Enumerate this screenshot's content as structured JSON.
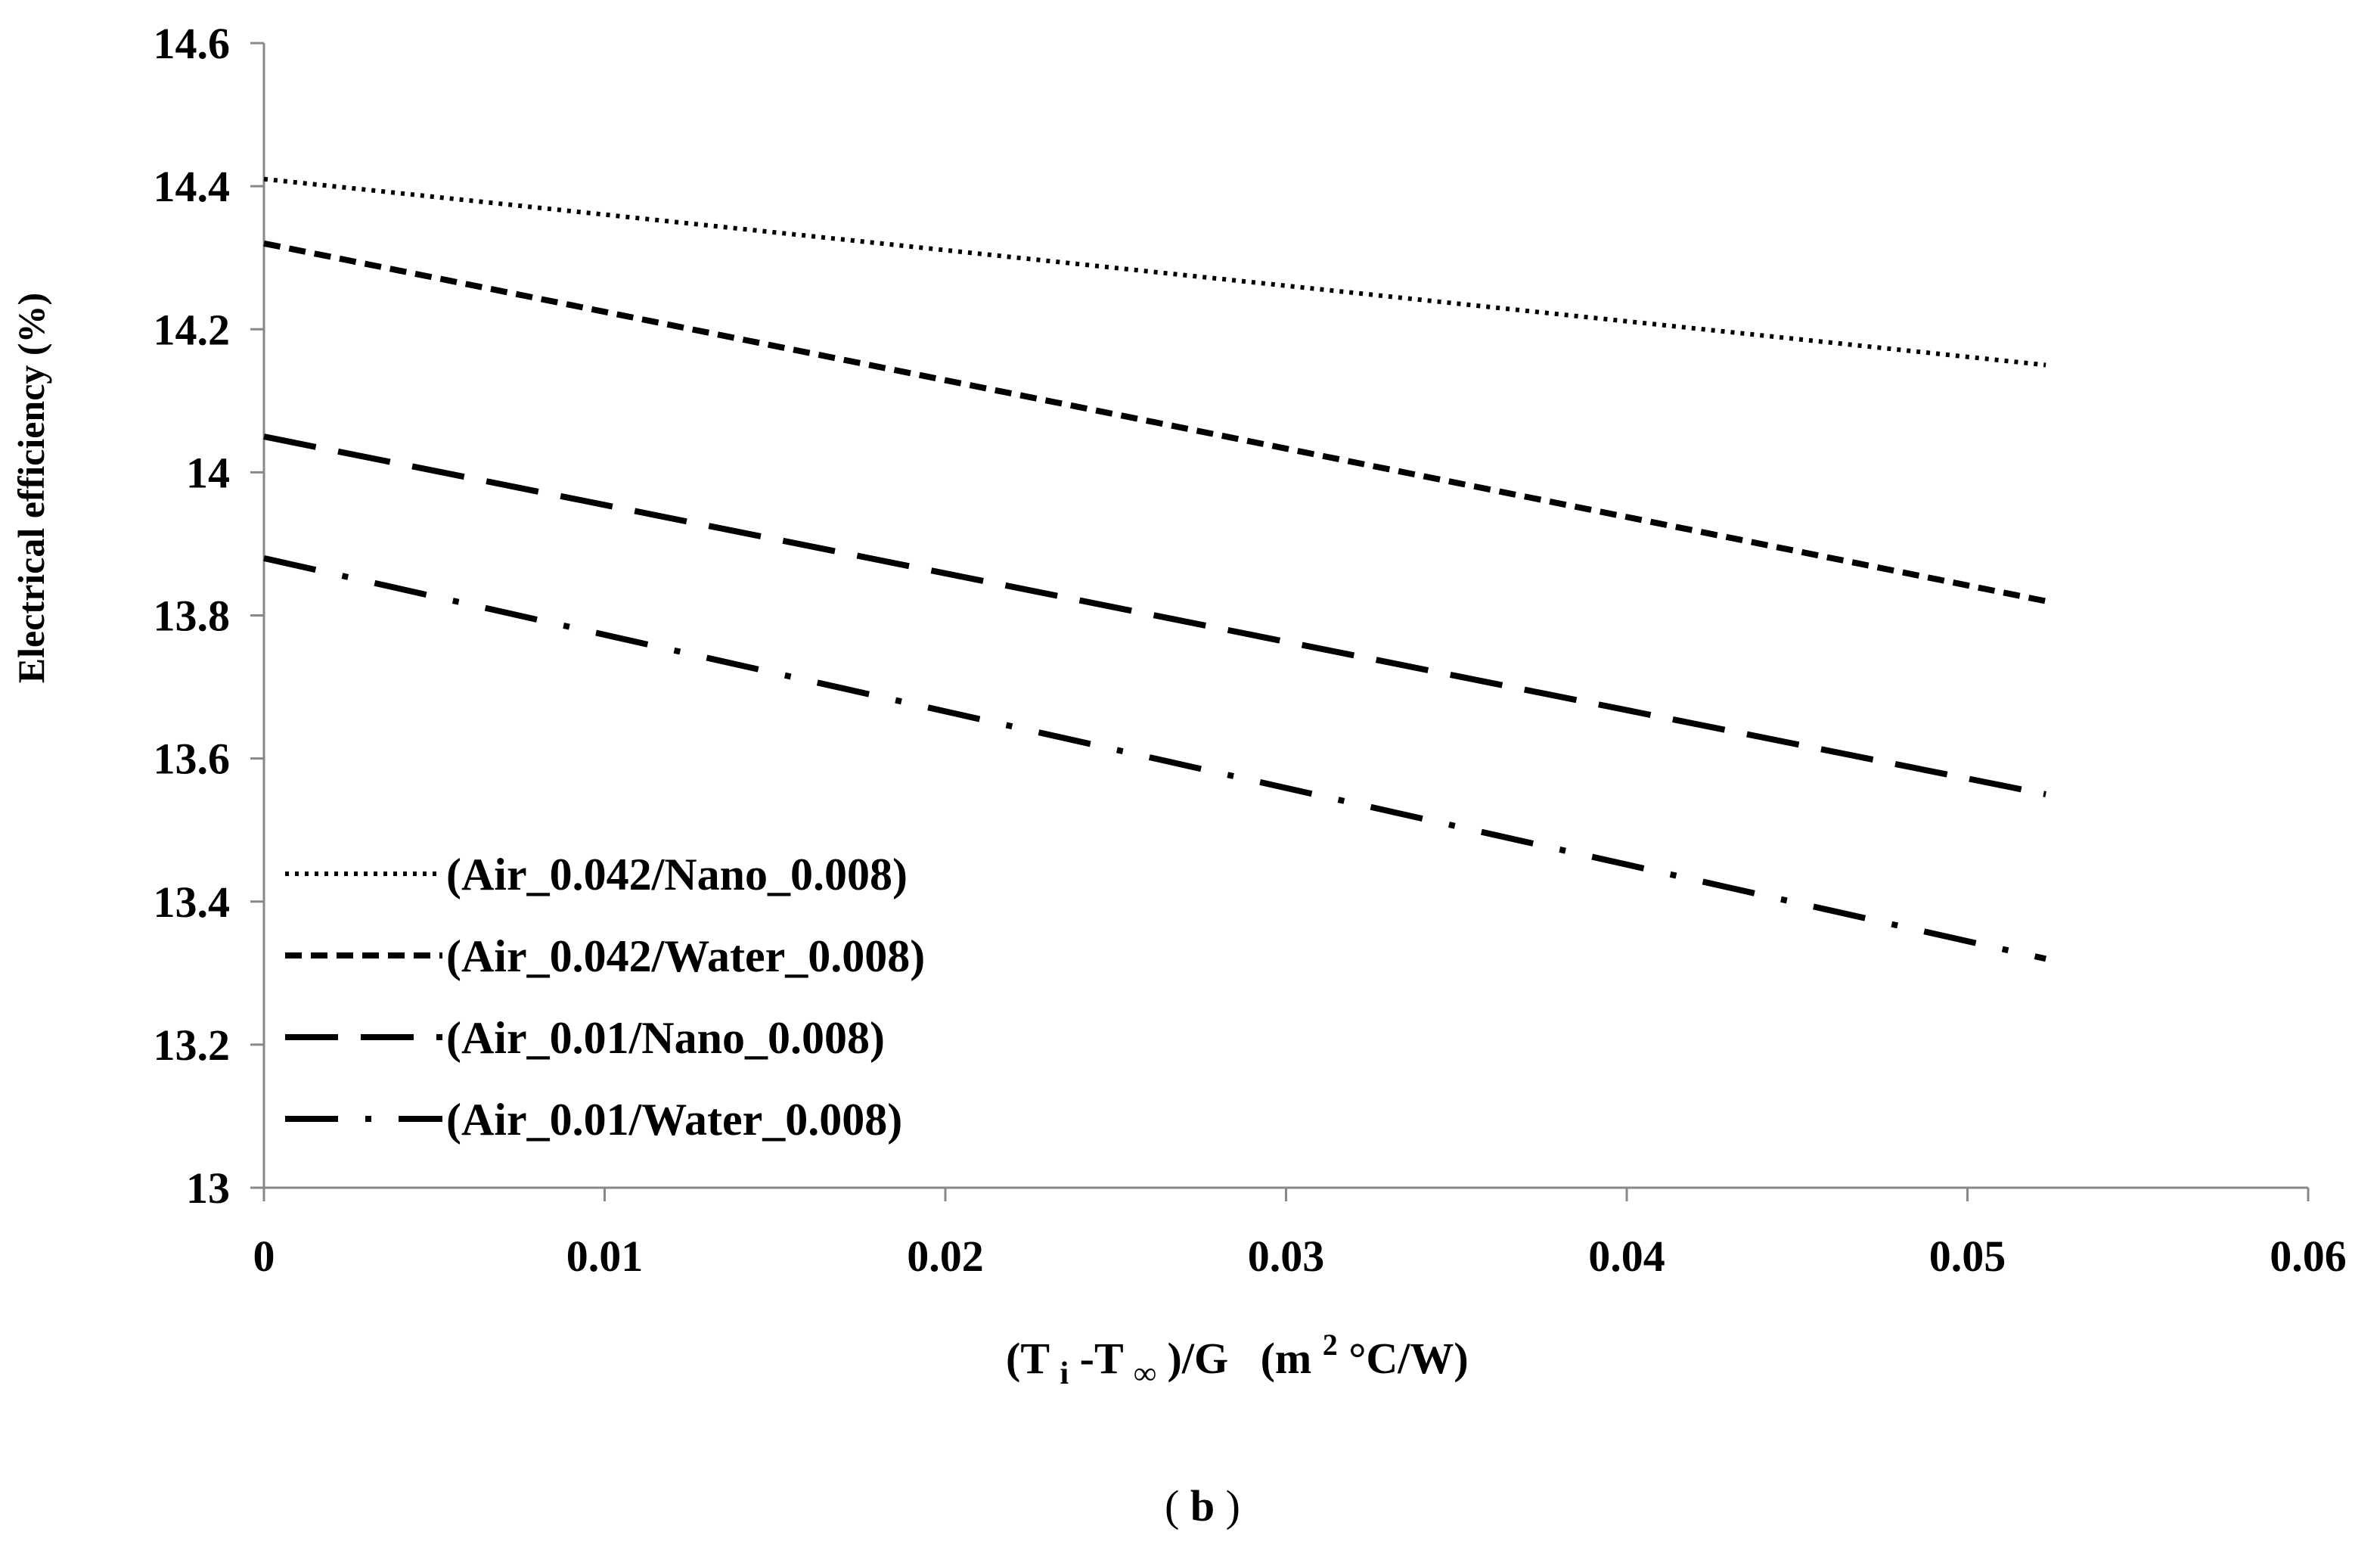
{
  "chart_data": {
    "type": "line",
    "title": "",
    "xlabel": {
      "open_t": "(T",
      "sub_i": "i",
      "minus_t": "-T",
      "sub_inf": "∞",
      "over_g": ")/G",
      "units_open": "(m",
      "units_exp": "2",
      "units_rest": " °C/W)"
    },
    "ylabel": "Electrical efficiency (%)",
    "xlim": [
      0,
      0.06
    ],
    "ylim": [
      13,
      14.6
    ],
    "xticks": [
      "0",
      "0.01",
      "0.02",
      "0.03",
      "0.04",
      "0.05",
      "0.06"
    ],
    "yticks": [
      "13",
      "13.2",
      "13.4",
      "13.6",
      "13.8",
      "14",
      "14.2",
      "14.4",
      "14.6"
    ],
    "grid": false,
    "legend_position": "bottom-left",
    "series": [
      {
        "name": "(Air_0.042/Nano_0.008)",
        "style": "dotted",
        "x": [
          0,
          0.0523
        ],
        "y": [
          14.41,
          14.15
        ]
      },
      {
        "name": "(Air_0.042/Water_0.008)",
        "style": "short-dash",
        "x": [
          0,
          0.0523
        ],
        "y": [
          14.32,
          13.82
        ]
      },
      {
        "name": "(Air_0.01/Nano_0.008)",
        "style": "long-dash",
        "x": [
          0,
          0.0523
        ],
        "y": [
          14.05,
          13.55
        ]
      },
      {
        "name": "(Air_0.01/Water_0.008)",
        "style": "dash-dot",
        "x": [
          0,
          0.0523
        ],
        "y": [
          13.88,
          13.32
        ]
      }
    ],
    "caption": {
      "open": "(",
      "letter": "b",
      "close": ")"
    },
    "line_color": "#000000",
    "axis_color": "#888888"
  }
}
